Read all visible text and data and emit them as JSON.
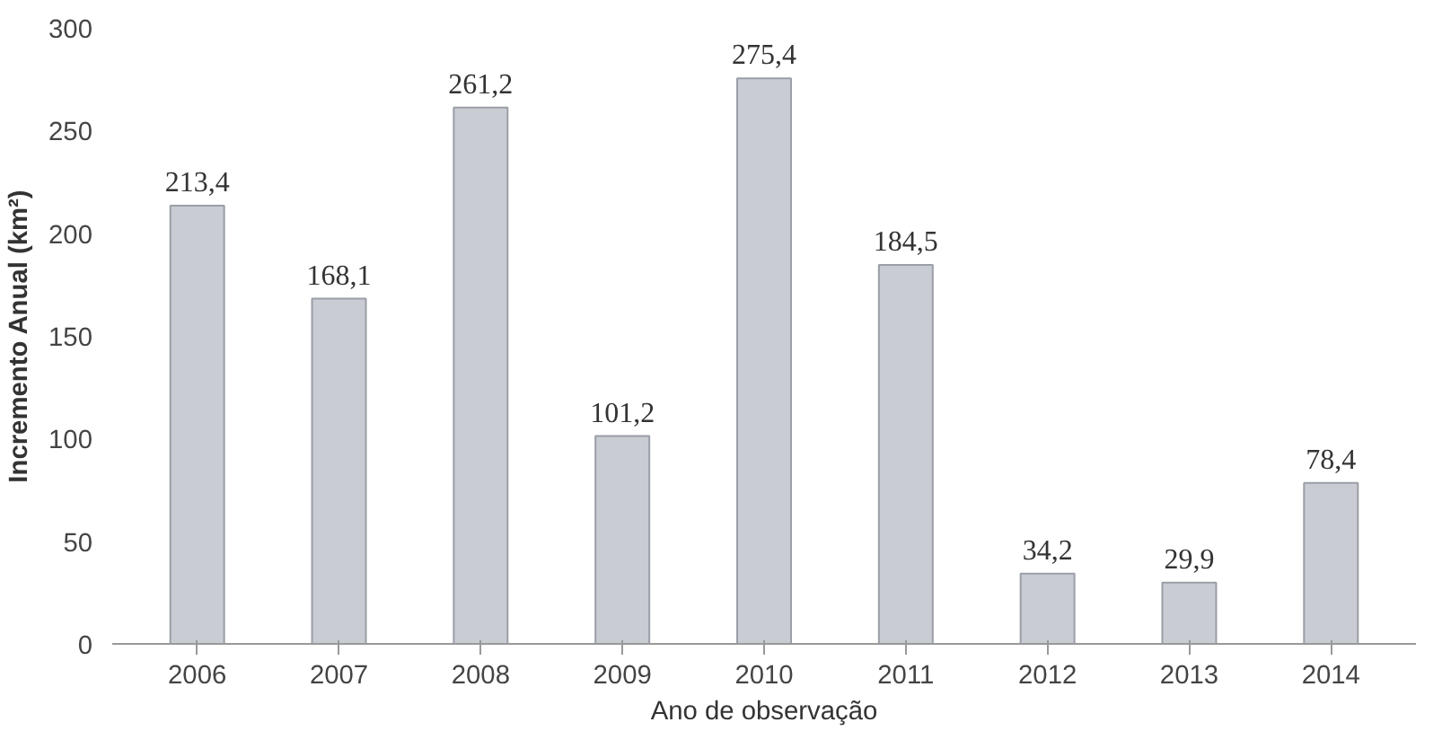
{
  "chart_data": {
    "type": "bar",
    "xlabel": "Ano de observação",
    "ylabel": "Incremento Anual (km²)",
    "categories": [
      "2006",
      "2007",
      "2008",
      "2009",
      "2010",
      "2011",
      "2012",
      "2013",
      "2014"
    ],
    "values": [
      213.4,
      168.1,
      261.2,
      101.2,
      275.4,
      184.5,
      34.2,
      29.9,
      78.4
    ],
    "value_labels": [
      "213,4",
      "168,1",
      "261,2",
      "101,2",
      "275,4",
      "184,5",
      "34,2",
      "29,9",
      "78,4"
    ],
    "color": "#c9ccd3",
    "ylim": [
      0,
      300
    ],
    "yticks": [
      0,
      50,
      100,
      150,
      200,
      250,
      300
    ],
    "grid": false
  }
}
